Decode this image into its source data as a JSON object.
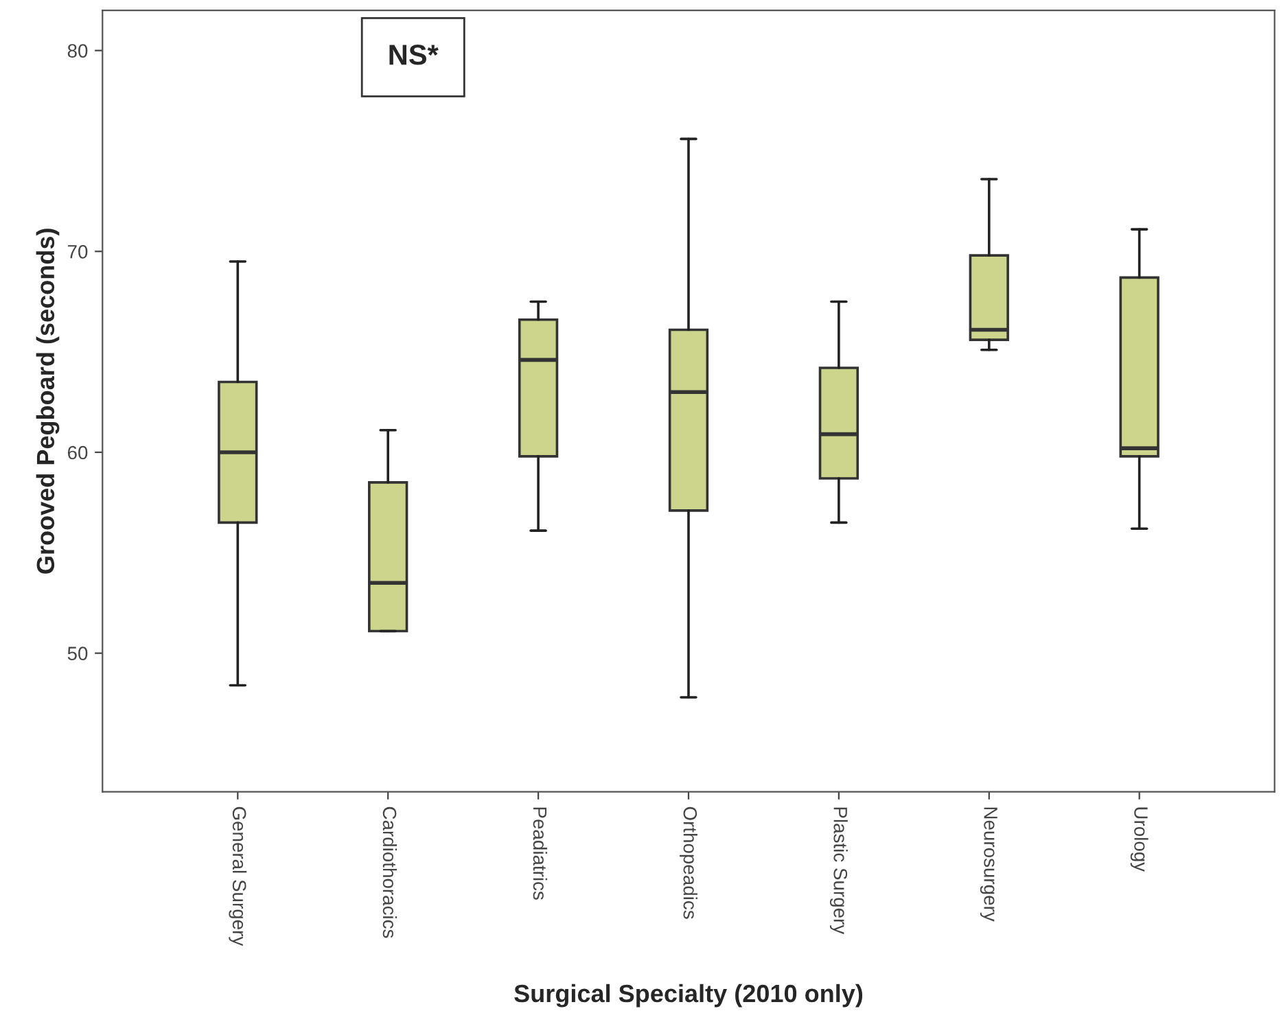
{
  "chart_data": {
    "type": "box",
    "xlabel": "Surgical Specialty (2010 only)",
    "ylabel": "Grooved Pegboard (seconds)",
    "categories": [
      "General Surgery",
      "Cardiothoracics",
      "Peadiatrics",
      "Orthopeadics",
      "Plastic Surgery",
      "Neurosurgery",
      "Urology"
    ],
    "color": "#cdd48c",
    "boxes": [
      {
        "low": 48.4,
        "q1": 56.5,
        "median": 60.0,
        "q3": 63.5,
        "high": 69.5
      },
      {
        "low": 51.1,
        "q1": 51.1,
        "median": 53.5,
        "q3": 58.5,
        "high": 61.1
      },
      {
        "low": 56.1,
        "q1": 59.8,
        "median": 64.6,
        "q3": 66.6,
        "high": 67.5
      },
      {
        "low": 47.8,
        "q1": 57.1,
        "median": 63.0,
        "q3": 66.1,
        "high": 75.6
      },
      {
        "low": 56.5,
        "q1": 58.7,
        "median": 60.9,
        "q3": 64.2,
        "high": 67.5
      },
      {
        "low": 65.1,
        "q1": 65.6,
        "median": 66.1,
        "q3": 69.8,
        "high": 73.6
      },
      {
        "low": 56.2,
        "q1": 59.8,
        "median": 60.2,
        "q3": 68.7,
        "high": 71.1
      }
    ],
    "ylim": [
      43.1,
      82.0
    ],
    "yticks": [
      50,
      60,
      70,
      80
    ],
    "grid": false,
    "annotations": [
      "NS*"
    ]
  }
}
